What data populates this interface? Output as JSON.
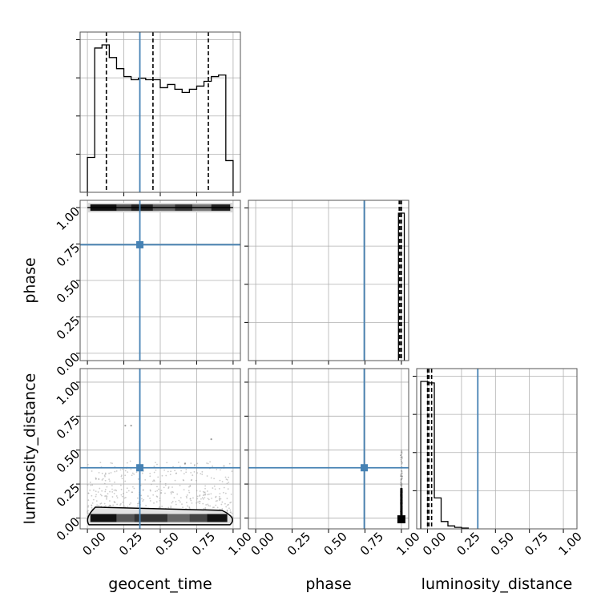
{
  "chart_data": {
    "type": "corner",
    "parameters": [
      "geocent_time",
      "phase",
      "luminosity_distance"
    ],
    "tick_labels": [
      "0.00",
      "0.25",
      "0.50",
      "0.75",
      "1.00"
    ],
    "axes": {
      "geocent_time": {
        "label": "geocent_time",
        "range": [
          -0.05,
          1.05
        ]
      },
      "phase": {
        "label": "phase",
        "range": [
          -0.05,
          1.05
        ]
      },
      "luminosity_distance": {
        "label": "luminosity_distance",
        "range": [
          -0.08,
          1.1
        ]
      }
    },
    "truths": {
      "geocent_time": 0.36,
      "phase": 0.745,
      "luminosity_distance": 0.37
    },
    "truth_color": "#4682b4",
    "hist_color": "#000000",
    "grid": true,
    "histograms": {
      "geocent_time": {
        "bins": [
          -0.05,
          -0.0,
          0.05,
          0.1,
          0.15,
          0.2,
          0.25,
          0.3,
          0.35,
          0.4,
          0.45,
          0.5,
          0.55,
          0.6,
          0.65,
          0.7,
          0.75,
          0.8,
          0.85,
          0.9,
          0.95,
          1.0,
          1.05
        ],
        "counts": [
          0,
          0.22,
          0.91,
          0.93,
          0.85,
          0.78,
          0.73,
          0.71,
          0.72,
          0.71,
          0.71,
          0.66,
          0.68,
          0.65,
          0.63,
          0.65,
          0.67,
          0.7,
          0.73,
          0.74,
          0.2,
          0
        ],
        "quantiles": [
          0.13,
          0.45,
          0.83
        ]
      },
      "phase": {
        "bins": [
          0.98,
          1.0,
          1.02
        ],
        "counts": [
          1.0,
          1.0
        ],
        "quantiles": [
          0.985,
          0.995,
          1.0
        ]
      },
      "luminosity_distance": {
        "bins": [
          -0.05,
          0.0,
          0.05,
          0.1,
          0.15,
          0.2,
          0.25,
          0.3
        ],
        "counts": [
          1.0,
          0.99,
          0.21,
          0.05,
          0.02,
          0.01,
          0.005
        ],
        "quantiles": [
          0.0,
          0.01,
          0.03
        ]
      }
    },
    "panels_2d": [
      {
        "x": "geocent_time",
        "y": "phase",
        "density_y": 1.0,
        "x_extent": [
          0.0,
          1.0
        ]
      },
      {
        "x": "geocent_time",
        "y": "luminosity_distance",
        "density_y": 0.0,
        "x_extent": [
          0.0,
          1.0
        ],
        "contour_top": 0.08
      },
      {
        "x": "phase",
        "y": "luminosity_distance",
        "density_x": 1.0,
        "y_extent": [
          0.0,
          0.5
        ]
      }
    ]
  }
}
